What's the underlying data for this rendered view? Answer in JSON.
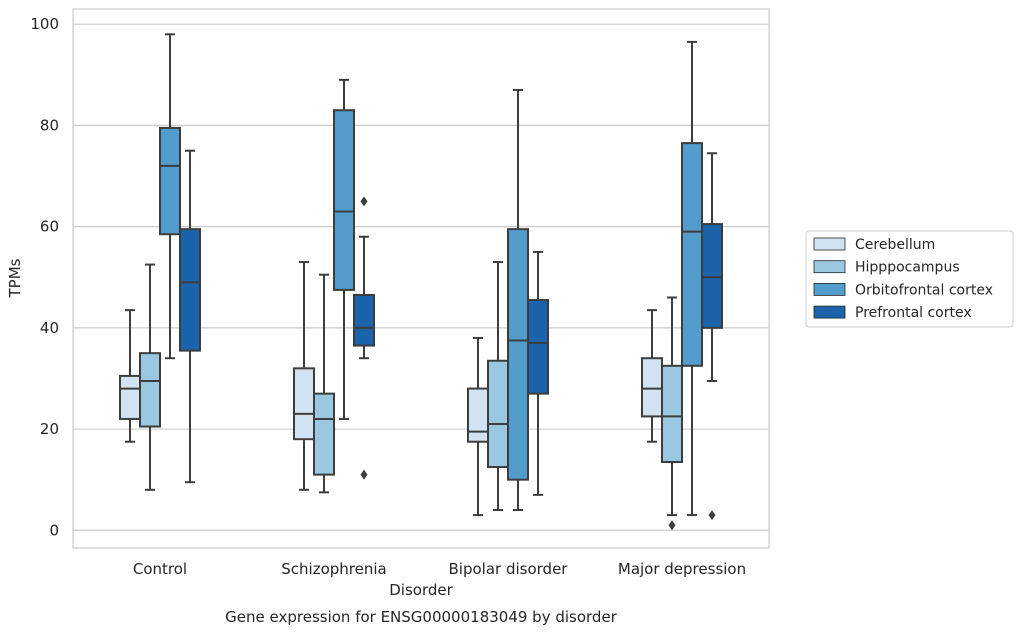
{
  "chart_data": {
    "type": "boxplot",
    "title": "Gene expression for ENSG00000183049 by disorder",
    "xlabel": "Disorder",
    "ylabel": "TPMs",
    "ylim": [
      -3.5,
      103
    ],
    "yticks": [
      0,
      20,
      40,
      60,
      80,
      100
    ],
    "grid": "horizontal",
    "legend_position": "right",
    "categories": [
      "Control",
      "Schizophrenia",
      "Bipolar disorder",
      "Major depression"
    ],
    "series": [
      {
        "name": "Cerebellum",
        "color": "#d1e2f3",
        "boxes": [
          {
            "whislo": 17.5,
            "q1": 22,
            "med": 28,
            "q3": 30.5,
            "whishi": 43.5,
            "fliers": []
          },
          {
            "whislo": 8,
            "q1": 18,
            "med": 23,
            "q3": 32,
            "whishi": 53,
            "fliers": []
          },
          {
            "whislo": 3,
            "q1": 17.5,
            "med": 19.5,
            "q3": 28,
            "whishi": 38,
            "fliers": []
          },
          {
            "whislo": 17.5,
            "q1": 22.5,
            "med": 28,
            "q3": 34,
            "whishi": 43.5,
            "fliers": []
          }
        ]
      },
      {
        "name": "Hipppocampus",
        "color": "#9ac8e0",
        "boxes": [
          {
            "whislo": 8,
            "q1": 20.5,
            "med": 29.5,
            "q3": 35,
            "whishi": 52.5,
            "fliers": []
          },
          {
            "whislo": 7.5,
            "q1": 11,
            "med": 22,
            "q3": 27,
            "whishi": 50.5,
            "fliers": []
          },
          {
            "whislo": 4,
            "q1": 12.5,
            "med": 21,
            "q3": 33.5,
            "whishi": 53,
            "fliers": []
          },
          {
            "whislo": 3,
            "q1": 13.5,
            "med": 22.5,
            "q3": 32.5,
            "whishi": 46,
            "fliers": [
              1
            ]
          }
        ]
      },
      {
        "name": "Orbitofrontal cortex",
        "color": "#529dcc",
        "boxes": [
          {
            "whislo": 34,
            "q1": 58.5,
            "med": 72,
            "q3": 79.5,
            "whishi": 98,
            "fliers": []
          },
          {
            "whislo": 22,
            "q1": 47.5,
            "med": 63,
            "q3": 83,
            "whishi": 89,
            "fliers": []
          },
          {
            "whislo": 4,
            "q1": 10,
            "med": 37.5,
            "q3": 59.5,
            "whishi": 87,
            "fliers": []
          },
          {
            "whislo": 3,
            "q1": 32.5,
            "med": 59,
            "q3": 76.5,
            "whishi": 96.5,
            "fliers": []
          }
        ]
      },
      {
        "name": "Prefrontal cortex",
        "color": "#1b63ab",
        "boxes": [
          {
            "whislo": 9.5,
            "q1": 35.5,
            "med": 49,
            "q3": 59.5,
            "whishi": 75,
            "fliers": []
          },
          {
            "whislo": 34,
            "q1": 36.5,
            "med": 40,
            "q3": 46.5,
            "whishi": 58,
            "fliers": [
              65,
              11
            ]
          },
          {
            "whislo": 7,
            "q1": 27,
            "med": 37,
            "q3": 45.5,
            "whishi": 55,
            "fliers": []
          },
          {
            "whislo": 29.5,
            "q1": 40,
            "med": 50,
            "q3": 60.5,
            "whishi": 74.5,
            "fliers": [
              3
            ]
          }
        ]
      }
    ]
  }
}
